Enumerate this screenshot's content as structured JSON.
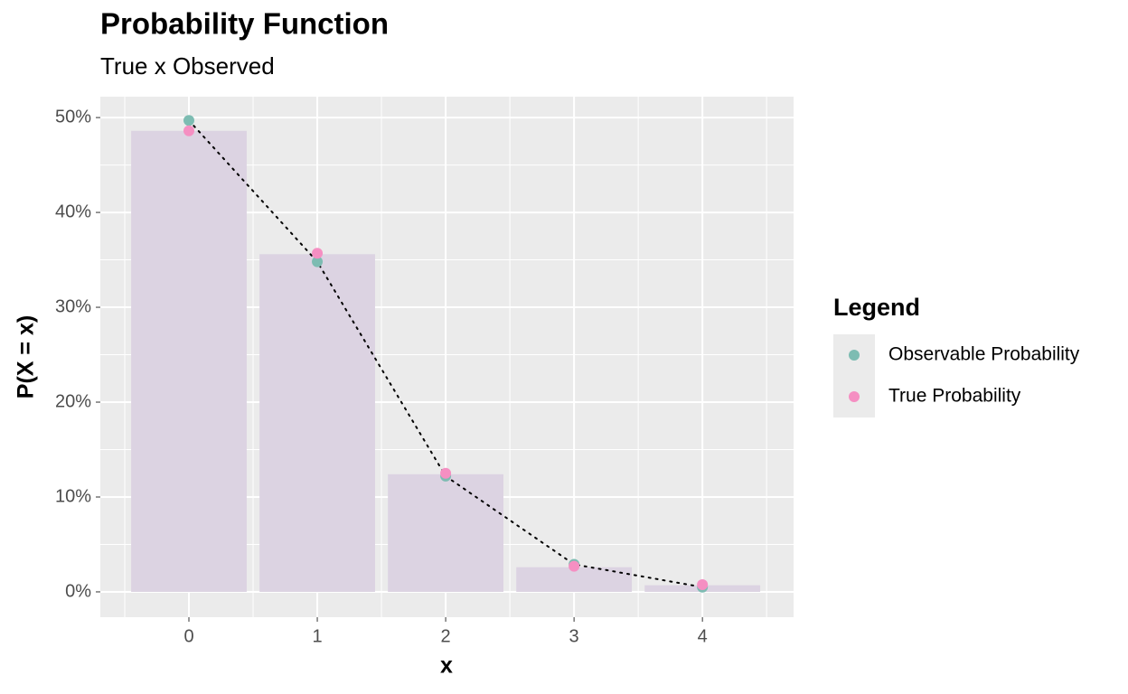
{
  "chart_data": {
    "type": "bar",
    "title": "Probability Function",
    "subtitle": "True x Observed",
    "x_label": "x",
    "y_label": "P(X = x)",
    "legend_title": "Legend",
    "legend_position": "right",
    "grid": true,
    "x": [
      0,
      1,
      2,
      3,
      4
    ],
    "bar_values": [
      48.6,
      35.6,
      12.4,
      2.6,
      0.7
    ],
    "bar_width": 0.9,
    "bar_color": "#dcd3e2",
    "series": [
      {
        "name": "Observable Probability",
        "color": "#7dbcb2",
        "values": [
          49.7,
          34.8,
          12.2,
          2.9,
          0.5
        ],
        "line": "dotted"
      },
      {
        "name": "True Probability",
        "color": "#f58fc2",
        "values": [
          48.6,
          35.7,
          12.5,
          2.7,
          0.76
        ]
      }
    ],
    "xlim": [
      -0.69,
      4.71
    ],
    "xticks": [
      0,
      1,
      2,
      3,
      4
    ],
    "ylim": [
      -2.67,
      52.2
    ],
    "yticks": [
      {
        "value": 0,
        "label": "0%"
      },
      {
        "value": 10,
        "label": "10%"
      },
      {
        "value": 20,
        "label": "20%"
      },
      {
        "value": 30,
        "label": "30%"
      },
      {
        "value": 40,
        "label": "40%"
      },
      {
        "value": 50,
        "label": "50%"
      }
    ]
  }
}
